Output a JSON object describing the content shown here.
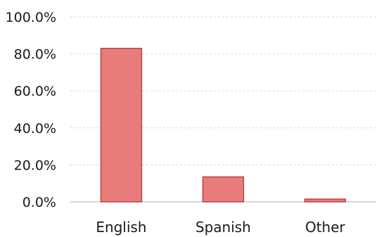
{
  "chart_data": {
    "type": "bar",
    "categories": [
      "English",
      "Spanish",
      "Other"
    ],
    "values": [
      83.0,
      13.5,
      1.5
    ],
    "ylim": [
      0,
      100
    ],
    "yticks": [
      "0.0%",
      "20.0%",
      "40.0%",
      "60.0%",
      "80.0%",
      "100.0%"
    ],
    "grid": true,
    "colors": {
      "bar_fill": "#e87c7a",
      "bar_edge": "#b5403f"
    }
  }
}
